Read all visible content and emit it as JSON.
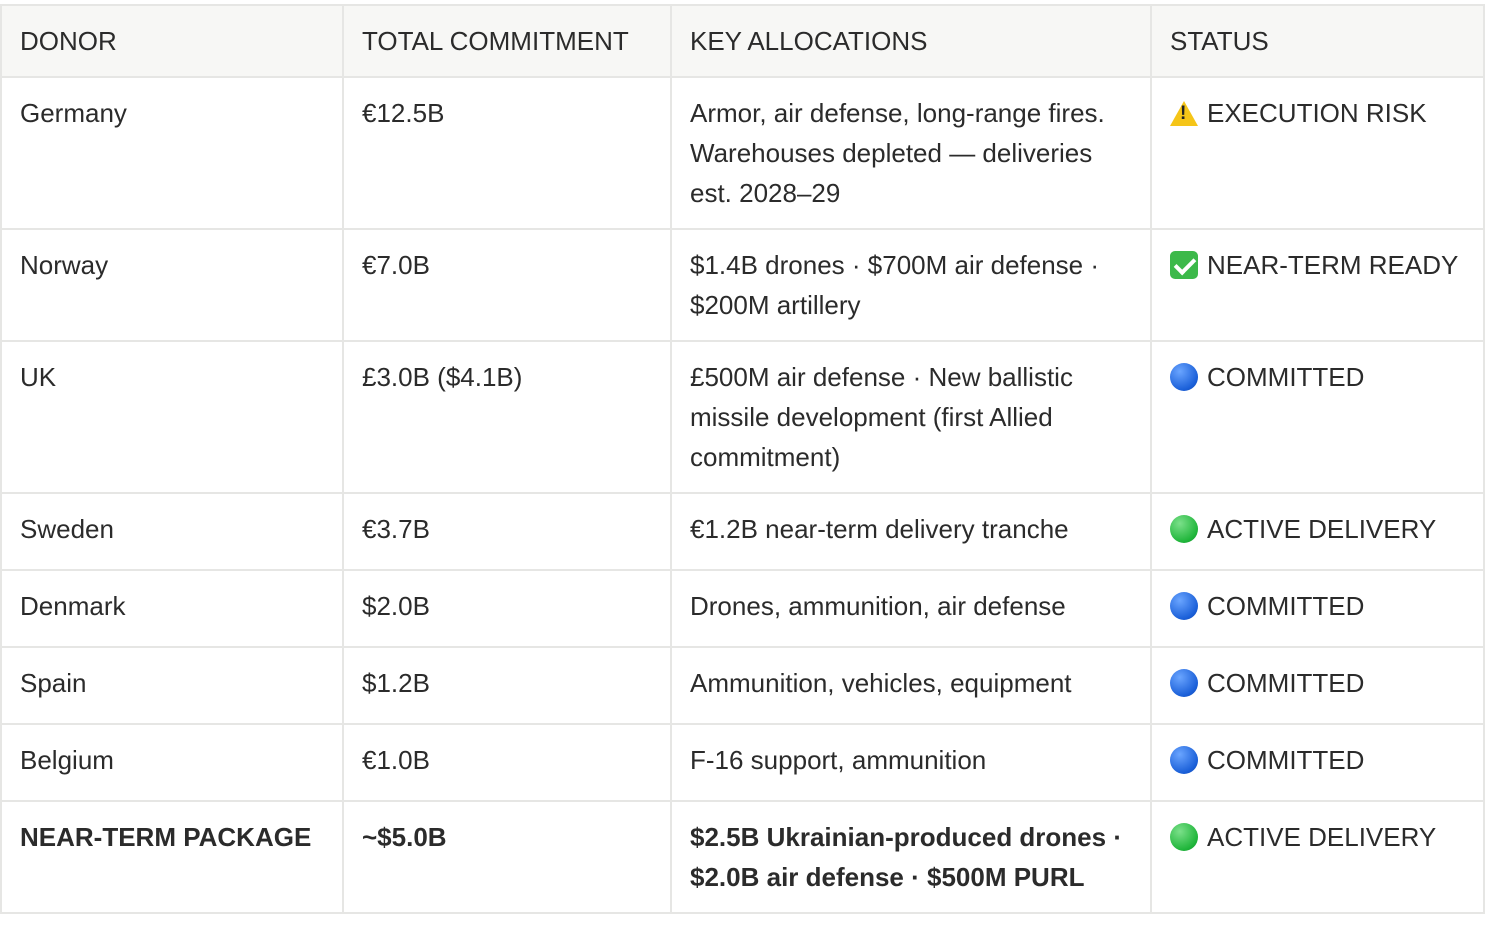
{
  "table": {
    "headers": [
      "DONOR",
      "TOTAL COMMITMENT",
      "KEY ALLOCATIONS",
      "STATUS"
    ],
    "rows": [
      {
        "donor": "Germany",
        "total": "€12.5B",
        "allocations": "Armor, air defense, long-range fires. Warehouses depleted — deliveries est. 2028–29",
        "status": "EXECUTION RISK",
        "status_icon": "warning-icon"
      },
      {
        "donor": "Norway",
        "total": "€7.0B",
        "allocations": "$1.4B drones · $700M air defense · $200M artillery",
        "status": "NEAR-TERM READY",
        "status_icon": "check-box-icon"
      },
      {
        "donor": "UK",
        "total": "£3.0B ($4.1B)",
        "allocations": "£500M air defense · New ballistic missile development (first Allied commitment)",
        "status": "COMMITTED",
        "status_icon": "blue-circle-icon"
      },
      {
        "donor": "Sweden",
        "total": "€3.7B",
        "allocations": "€1.2B near-term delivery tranche",
        "status": "ACTIVE DELIVERY",
        "status_icon": "green-circle-icon"
      },
      {
        "donor": "Denmark",
        "total": "$2.0B",
        "allocations": "Drones, ammunition, air defense",
        "status": "COMMITTED",
        "status_icon": "blue-circle-icon"
      },
      {
        "donor": "Spain",
        "total": "$1.2B",
        "allocations": "Ammunition, vehicles, equipment",
        "status": "COMMITTED",
        "status_icon": "blue-circle-icon"
      },
      {
        "donor": "Belgium",
        "total": "€1.0B",
        "allocations": "F-16 support, ammunition",
        "status": "COMMITTED",
        "status_icon": "blue-circle-icon"
      },
      {
        "donor": "NEAR-TERM PACKAGE",
        "total": "~$5.0B",
        "allocations": "$2.5B Ukrainian-produced drones · $2.0B air defense · $500M PURL",
        "status": "ACTIVE DELIVERY",
        "status_icon": "green-circle-icon"
      }
    ]
  },
  "colors": {
    "header_bg": "#f7f7f5",
    "border": "#e6e6e4",
    "text": "#2b2b2b"
  }
}
